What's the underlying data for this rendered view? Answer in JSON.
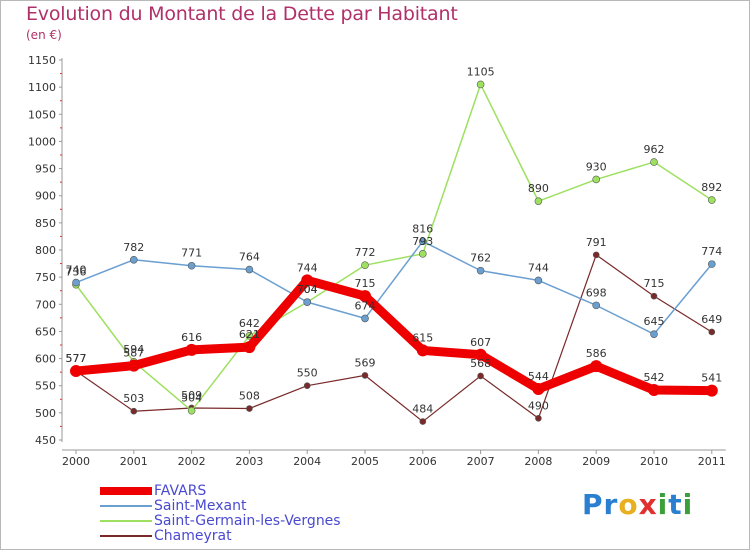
{
  "title": "Evolution du Montant de la Dette par Habitant",
  "subtitle": "(en €)",
  "logo_letters": [
    {
      "ch": "P",
      "color": "#2b7fd0"
    },
    {
      "ch": "r",
      "color": "#2b7fd0"
    },
    {
      "ch": "o",
      "color": "#e8b020"
    },
    {
      "ch": "x",
      "color": "#e03030"
    },
    {
      "ch": "i",
      "color": "#3aa03a"
    },
    {
      "ch": "t",
      "color": "#2b7fd0"
    },
    {
      "ch": "i",
      "color": "#3aa03a"
    }
  ],
  "chart_data": {
    "type": "line",
    "x": [
      "2000",
      "2001",
      "2002",
      "2003",
      "2004",
      "2005",
      "2006",
      "2007",
      "2008",
      "2009",
      "2010",
      "2011"
    ],
    "ylim": [
      450,
      1150
    ],
    "yticks": [
      450,
      500,
      550,
      600,
      650,
      700,
      750,
      800,
      850,
      900,
      950,
      1000,
      1050,
      1100,
      1150
    ],
    "grid": false,
    "legend_position": "bottom-left",
    "series": [
      {
        "name": "FAVARS",
        "color": "#ee0000",
        "width": 9,
        "marker_radius": 6,
        "values": [
          577,
          587,
          616,
          621,
          744,
          715,
          615,
          607,
          544,
          586,
          542,
          541
        ],
        "labels": [
          "577",
          "587",
          "616",
          "621",
          "744",
          "715",
          "615",
          "607",
          "544",
          "586",
          "542",
          "541"
        ]
      },
      {
        "name": "Saint-Mexant",
        "color": "#6a9fd0",
        "width": 1.5,
        "marker_radius": 3.5,
        "values": [
          740,
          782,
          771,
          764,
          704,
          674,
          816,
          762,
          744,
          698,
          645,
          774
        ],
        "labels": [
          "740",
          "782",
          "771",
          "764",
          "704",
          "674",
          "816",
          "762",
          "744",
          "698",
          "645",
          "774"
        ]
      },
      {
        "name": "Saint-Germain-les-Vergnes",
        "color": "#9ee060",
        "width": 1.5,
        "marker_radius": 3.5,
        "values": [
          736,
          594,
          504,
          642,
          704,
          772,
          793,
          1105,
          890,
          930,
          962,
          892
        ],
        "labels": [
          "736",
          "594",
          "504",
          "642",
          "704",
          "772",
          "793",
          "1105",
          "890",
          "930",
          "962",
          "892"
        ]
      },
      {
        "name": "Chameyrat",
        "color": "#7a2a2a",
        "width": 1.2,
        "marker_radius": 3,
        "values": [
          577,
          503,
          509,
          508,
          550,
          569,
          484,
          568,
          490,
          791,
          715,
          649
        ],
        "labels": [
          "577",
          "503",
          "509",
          "508",
          "550",
          "569",
          "484",
          "568",
          "490",
          "791",
          "715",
          "649"
        ]
      }
    ]
  }
}
